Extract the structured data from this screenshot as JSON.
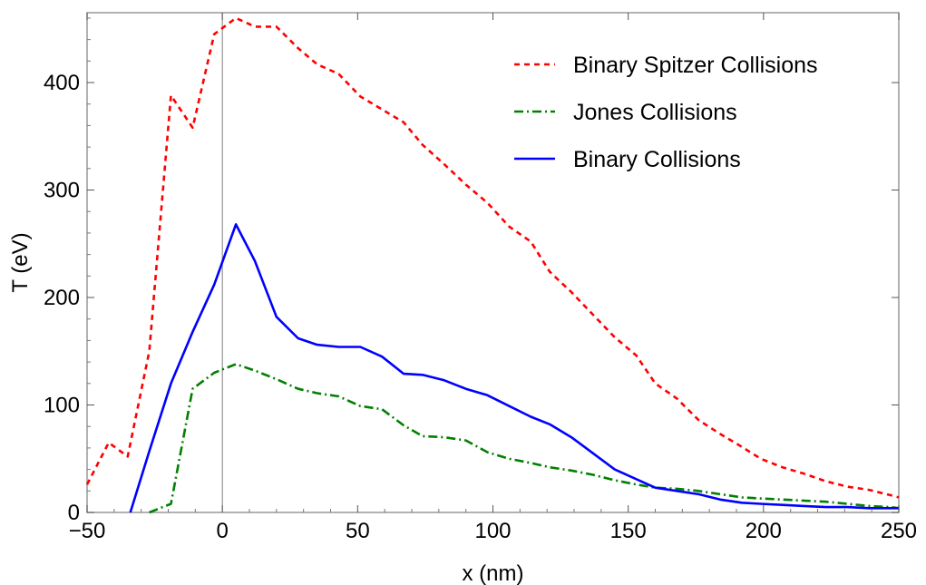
{
  "chart_data": {
    "type": "line",
    "title": "",
    "xlabel": "x (nm)",
    "ylabel": "T (eV)",
    "xlim": [
      -50,
      250
    ],
    "ylim": [
      0,
      465
    ],
    "xticks": [
      -50,
      0,
      50,
      100,
      150,
      200,
      250
    ],
    "xtick_labels": [
      "−50",
      "0",
      "50",
      "100",
      "150",
      "200",
      "250"
    ],
    "yticks": [
      0,
      100,
      200,
      300,
      400
    ],
    "ytick_labels": [
      "0",
      "100",
      "200",
      "300",
      "400"
    ],
    "legend_position": "top-right",
    "series": [
      {
        "name": "Binary Spitzer Collisions",
        "color": "#ff0000",
        "style": "dashed",
        "x": [
          -50,
          -42,
          -35,
          -27,
          -19,
          -11,
          -3,
          5,
          12,
          20,
          28,
          35,
          43,
          51,
          59,
          67,
          74,
          82,
          90,
          98,
          106,
          114,
          121,
          129,
          137,
          145,
          153,
          160,
          168,
          176,
          184,
          192,
          199,
          207,
          215,
          223,
          231,
          239,
          247,
          250
        ],
        "values": [
          26,
          65,
          52,
          150,
          388,
          358,
          445,
          460,
          452,
          452,
          432,
          417,
          408,
          387,
          375,
          363,
          342,
          324,
          305,
          288,
          266,
          252,
          224,
          205,
          184,
          163,
          146,
          120,
          106,
          86,
          73,
          61,
          50,
          42,
          36,
          29,
          24,
          21,
          16,
          14
        ]
      },
      {
        "name": "Jones Collisions",
        "color": "#008000",
        "style": "dashdot",
        "x": [
          -27,
          -19,
          -11,
          -3,
          5,
          12,
          20,
          28,
          35,
          43,
          51,
          59,
          67,
          74,
          82,
          90,
          98,
          106,
          114,
          121,
          129,
          137,
          145,
          153,
          160,
          168,
          176,
          184,
          192,
          199,
          207,
          215,
          223,
          231,
          239,
          247,
          250
        ],
        "values": [
          0,
          8,
          115,
          130,
          138,
          132,
          124,
          115,
          111,
          108,
          99,
          96,
          81,
          71,
          70,
          67,
          56,
          50,
          46,
          42,
          39,
          35,
          30,
          26,
          23,
          22,
          20,
          17,
          14,
          13,
          12,
          11,
          10,
          8,
          6,
          5,
          4
        ]
      },
      {
        "name": "Binary Collisions",
        "color": "#0000ff",
        "style": "solid",
        "x": [
          -34,
          -27,
          -19,
          -11,
          -3,
          5,
          12,
          20,
          28,
          35,
          43,
          51,
          59,
          67,
          74,
          82,
          90,
          98,
          106,
          114,
          121,
          129,
          137,
          145,
          153,
          160,
          168,
          176,
          184,
          192,
          199,
          207,
          215,
          223,
          231,
          239,
          247,
          250
        ],
        "values": [
          0,
          57,
          120,
          168,
          212,
          268,
          234,
          182,
          162,
          156,
          154,
          154,
          145,
          129,
          128,
          123,
          115,
          109,
          99,
          89,
          82,
          70,
          55,
          40,
          31,
          23,
          20,
          17,
          12,
          9,
          8,
          7,
          6,
          5,
          5,
          4,
          4,
          4
        ]
      }
    ]
  }
}
